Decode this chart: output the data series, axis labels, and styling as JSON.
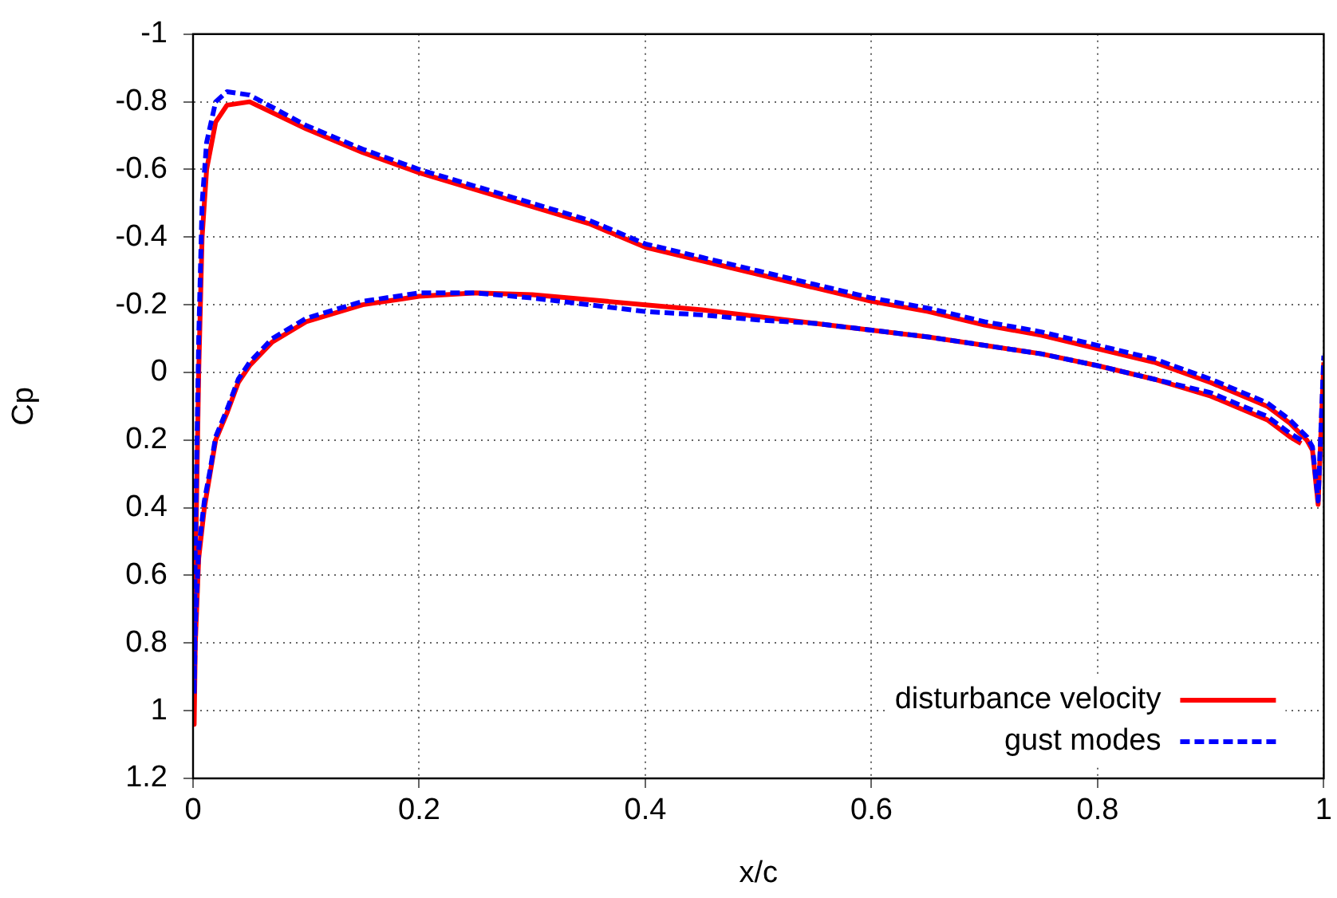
{
  "chart_data": {
    "type": "line",
    "xlabel": "x/c",
    "ylabel": "Cp",
    "xlim": [
      0,
      1
    ],
    "ylim": [
      1.2,
      -1
    ],
    "xticks": [
      0,
      0.2,
      0.4,
      0.6,
      0.8,
      1
    ],
    "yticks": [
      -1,
      -0.8,
      -0.6,
      -0.4,
      -0.2,
      0,
      0.2,
      0.4,
      0.6,
      0.8,
      1,
      1.2
    ],
    "grid": true,
    "legend": "bottom right",
    "marker": "none",
    "series": [
      {
        "name": "disturbance velocity",
        "color": "#ff0000",
        "line_style": "solid",
        "x": [
          0.98,
          0.97,
          0.95,
          0.9,
          0.85,
          0.8,
          0.75,
          0.7,
          0.65,
          0.6,
          0.55,
          0.5,
          0.45,
          0.4,
          0.35,
          0.3,
          0.25,
          0.2,
          0.15,
          0.1,
          0.07,
          0.05,
          0.04,
          0.03,
          0.02,
          0.015,
          0.01,
          0.005,
          0.002,
          0.001,
          0.002,
          0.005,
          0.008,
          0.012,
          0.02,
          0.03,
          0.05,
          0.1,
          0.15,
          0.2,
          0.25,
          0.3,
          0.35,
          0.4,
          0.45,
          0.5,
          0.55,
          0.6,
          0.65,
          0.7,
          0.75,
          0.8,
          0.85,
          0.9,
          0.95,
          0.97,
          0.985,
          0.99,
          0.995,
          1
        ],
        "values": [
          0.21,
          0.19,
          0.14,
          0.07,
          0.02,
          -0.02,
          -0.055,
          -0.08,
          -0.105,
          -0.125,
          -0.145,
          -0.165,
          -0.185,
          -0.2,
          -0.215,
          -0.23,
          -0.235,
          -0.225,
          -0.2,
          -0.15,
          -0.09,
          -0.02,
          0.03,
          0.12,
          0.2,
          0.3,
          0.4,
          0.55,
          0.8,
          1.04,
          0.6,
          0,
          -0.4,
          -0.6,
          -0.74,
          -0.79,
          -0.8,
          -0.72,
          -0.65,
          -0.59,
          -0.54,
          -0.49,
          -0.44,
          -0.37,
          -0.33,
          -0.29,
          -0.25,
          -0.21,
          -0.18,
          -0.14,
          -0.11,
          -0.07,
          -0.03,
          0.03,
          0.1,
          0.15,
          0.2,
          0.23,
          0.39,
          -0.03
        ]
      },
      {
        "name": "gust modes",
        "color": "#0000ff",
        "line_style": "dashed",
        "x": [
          0.98,
          0.97,
          0.95,
          0.9,
          0.85,
          0.8,
          0.75,
          0.7,
          0.65,
          0.6,
          0.55,
          0.5,
          0.45,
          0.4,
          0.35,
          0.3,
          0.25,
          0.2,
          0.15,
          0.1,
          0.07,
          0.05,
          0.04,
          0.03,
          0.02,
          0.015,
          0.01,
          0.005,
          0.002,
          0.001,
          0.002,
          0.005,
          0.008,
          0.012,
          0.02,
          0.03,
          0.05,
          0.1,
          0.15,
          0.2,
          0.25,
          0.3,
          0.35,
          0.4,
          0.45,
          0.5,
          0.55,
          0.6,
          0.65,
          0.7,
          0.75,
          0.8,
          0.85,
          0.9,
          0.95,
          0.97,
          0.985,
          0.99,
          0.995,
          1
        ],
        "values": [
          0.2,
          0.18,
          0.13,
          0.06,
          0.02,
          -0.02,
          -0.055,
          -0.08,
          -0.105,
          -0.125,
          -0.145,
          -0.155,
          -0.17,
          -0.18,
          -0.2,
          -0.22,
          -0.235,
          -0.235,
          -0.21,
          -0.16,
          -0.1,
          -0.03,
          0.02,
          0.11,
          0.19,
          0.29,
          0.38,
          0.52,
          0.75,
          0.95,
          0.5,
          -0.1,
          -0.5,
          -0.68,
          -0.8,
          -0.83,
          -0.82,
          -0.73,
          -0.66,
          -0.6,
          -0.55,
          -0.5,
          -0.45,
          -0.38,
          -0.34,
          -0.3,
          -0.26,
          -0.22,
          -0.19,
          -0.15,
          -0.12,
          -0.08,
          -0.04,
          0.02,
          0.09,
          0.14,
          0.19,
          0.22,
          0.38,
          -0.05
        ]
      }
    ]
  }
}
